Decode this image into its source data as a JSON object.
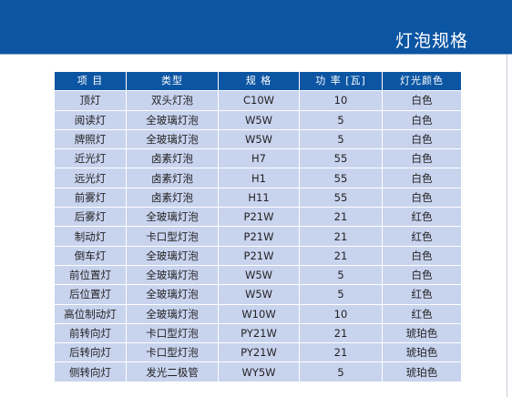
{
  "header": {
    "title": "灯泡规格"
  },
  "table": {
    "columns": [
      "项 目",
      "类型",
      "规 格",
      "功 率 [瓦]",
      "灯光颜色"
    ],
    "rows": [
      [
        "顶灯",
        "双头灯泡",
        "C10W",
        "10",
        "白色"
      ],
      [
        "阅读灯",
        "全玻璃灯泡",
        "W5W",
        "5",
        "白色"
      ],
      [
        "牌照灯",
        "全玻璃灯泡",
        "W5W",
        "5",
        "白色"
      ],
      [
        "近光灯",
        "卤素灯泡",
        "H7",
        "55",
        "白色"
      ],
      [
        "远光灯",
        "卤素灯泡",
        "H1",
        "55",
        "白色"
      ],
      [
        "前雾灯",
        "卤素灯泡",
        "H11",
        "55",
        "白色"
      ],
      [
        "后雾灯",
        "全玻璃灯泡",
        "P21W",
        "21",
        "红色"
      ],
      [
        "制动灯",
        "卡口型灯泡",
        "P21W",
        "21",
        "红色"
      ],
      [
        "倒车灯",
        "全玻璃灯泡",
        "P21W",
        "21",
        "白色"
      ],
      [
        "前位置灯",
        "全玻璃灯泡",
        "W5W",
        "5",
        "白色"
      ],
      [
        "后位置灯",
        "全玻璃灯泡",
        "W5W",
        "5",
        "红色"
      ],
      [
        "高位制动灯",
        "全玻璃灯泡",
        "W10W",
        "10",
        "红色"
      ],
      [
        "前转向灯",
        "卡口型灯泡",
        "PY21W",
        "21",
        "琥珀色"
      ],
      [
        "后转向灯",
        "卡口型灯泡",
        "PY21W",
        "21",
        "琥珀色"
      ],
      [
        "侧转向灯",
        "发光二极管",
        "WY5W",
        "5",
        "琥珀色"
      ]
    ]
  },
  "colors": {
    "header_blue": "#0b55a3",
    "row_fill": "#c8d3ee",
    "header_text": "#ffffff",
    "body_text": "#222222"
  }
}
